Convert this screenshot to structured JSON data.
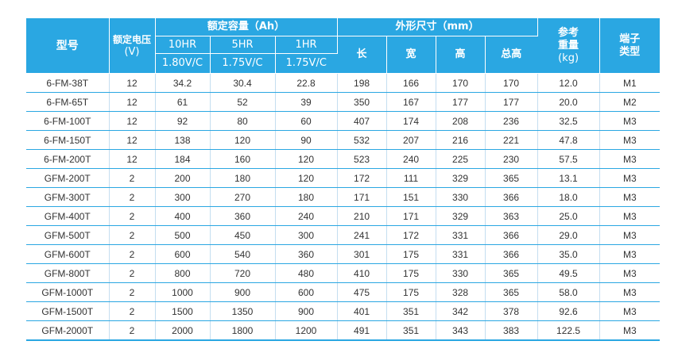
{
  "colors": {
    "header_bg": "#2aa7e2",
    "header_text": "#ffffff",
    "row_rule": "#2aa7e2",
    "cell_text": "#333333"
  },
  "header": {
    "model": "型号",
    "rated_voltage": "额定电压",
    "rated_voltage_unit": "(V)",
    "capacity": "额定容量（Ah）",
    "rate_10hr": "10HR",
    "rate_5hr": "5HR",
    "rate_1hr": "1HR",
    "endv_10hr": "1.80V/C",
    "endv_5hr": "1.75V/C",
    "endv_1hr": "1.75V/C",
    "dimensions": "外形尺寸（mm）",
    "length": "长",
    "width": "宽",
    "height": "高",
    "total_height": "总高",
    "weight_line1": "参考",
    "weight_line2": "重量",
    "weight_unit": "(kg)",
    "terminal_line1": "端子",
    "terminal_line2": "类型"
  },
  "rows": [
    {
      "model": "6-FM-38T",
      "voltage": "12",
      "c10": "34.2",
      "c5": "30.4",
      "c1": "22.8",
      "len": "198",
      "wid": "166",
      "hgt": "170",
      "total": "170",
      "weight": "12.0",
      "terminal": "M1"
    },
    {
      "model": "6-FM-65T",
      "voltage": "12",
      "c10": "61",
      "c5": "52",
      "c1": "39",
      "len": "350",
      "wid": "167",
      "hgt": "177",
      "total": "177",
      "weight": "20.0",
      "terminal": "M2"
    },
    {
      "model": "6-FM-100T",
      "voltage": "12",
      "c10": "92",
      "c5": "80",
      "c1": "60",
      "len": "407",
      "wid": "174",
      "hgt": "208",
      "total": "236",
      "weight": "32.5",
      "terminal": "M3"
    },
    {
      "model": "6-FM-150T",
      "voltage": "12",
      "c10": "138",
      "c5": "120",
      "c1": "90",
      "len": "532",
      "wid": "207",
      "hgt": "216",
      "total": "221",
      "weight": "47.8",
      "terminal": "M3"
    },
    {
      "model": "6-FM-200T",
      "voltage": "12",
      "c10": "184",
      "c5": "160",
      "c1": "120",
      "len": "523",
      "wid": "240",
      "hgt": "225",
      "total": "230",
      "weight": "57.5",
      "terminal": "M3"
    },
    {
      "model": "GFM-200T",
      "voltage": "2",
      "c10": "200",
      "c5": "180",
      "c1": "120",
      "len": "172",
      "wid": "111",
      "hgt": "329",
      "total": "365",
      "weight": "13.1",
      "terminal": "M3"
    },
    {
      "model": "GFM-300T",
      "voltage": "2",
      "c10": "300",
      "c5": "270",
      "c1": "180",
      "len": "171",
      "wid": "151",
      "hgt": "330",
      "total": "366",
      "weight": "18.0",
      "terminal": "M3"
    },
    {
      "model": "GFM-400T",
      "voltage": "2",
      "c10": "400",
      "c5": "360",
      "c1": "240",
      "len": "210",
      "wid": "171",
      "hgt": "329",
      "total": "363",
      "weight": "25.0",
      "terminal": "M3"
    },
    {
      "model": "GFM-500T",
      "voltage": "2",
      "c10": "500",
      "c5": "450",
      "c1": "300",
      "len": "241",
      "wid": "172",
      "hgt": "331",
      "total": "366",
      "weight": "29.0",
      "terminal": "M3"
    },
    {
      "model": "GFM-600T",
      "voltage": "2",
      "c10": "600",
      "c5": "540",
      "c1": "360",
      "len": "301",
      "wid": "175",
      "hgt": "331",
      "total": "366",
      "weight": "35.0",
      "terminal": "M3"
    },
    {
      "model": "GFM-800T",
      "voltage": "2",
      "c10": "800",
      "c5": "720",
      "c1": "480",
      "len": "410",
      "wid": "175",
      "hgt": "330",
      "total": "365",
      "weight": "49.5",
      "terminal": "M3"
    },
    {
      "model": "GFM-1000T",
      "voltage": "2",
      "c10": "1000",
      "c5": "900",
      "c1": "600",
      "len": "475",
      "wid": "175",
      "hgt": "328",
      "total": "365",
      "weight": "58.0",
      "terminal": "M3"
    },
    {
      "model": "GFM-1500T",
      "voltage": "2",
      "c10": "1500",
      "c5": "1350",
      "c1": "900",
      "len": "401",
      "wid": "351",
      "hgt": "342",
      "total": "378",
      "weight": "92.6",
      "terminal": "M3"
    },
    {
      "model": "GFM-2000T",
      "voltage": "2",
      "c10": "2000",
      "c5": "1800",
      "c1": "1200",
      "len": "491",
      "wid": "351",
      "hgt": "343",
      "total": "383",
      "weight": "122.5",
      "terminal": "M3"
    }
  ]
}
